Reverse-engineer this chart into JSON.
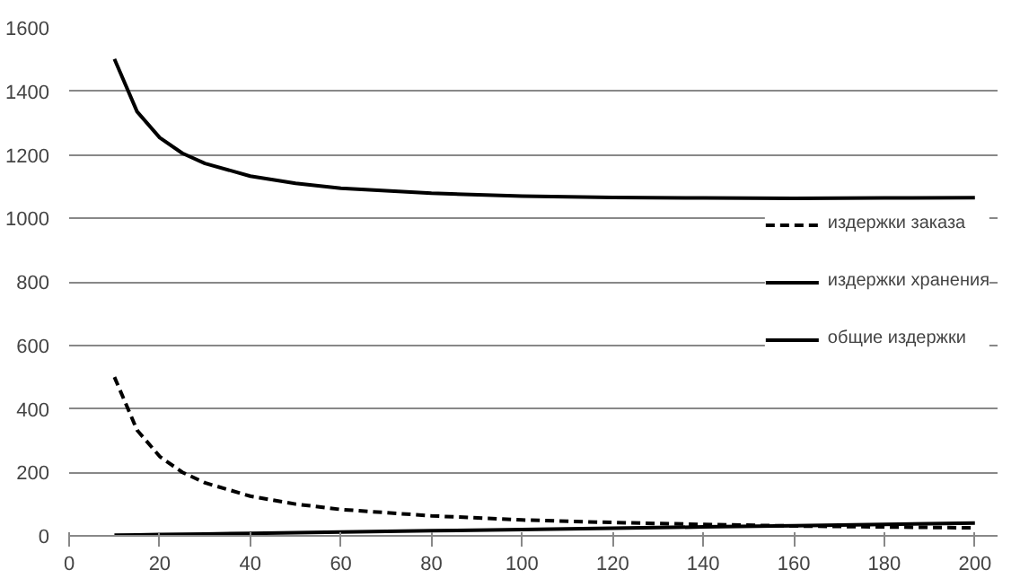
{
  "chart_data": {
    "type": "line",
    "x": [
      10,
      15,
      20,
      25,
      30,
      40,
      50,
      60,
      80,
      100,
      120,
      140,
      160,
      180,
      200
    ],
    "series": [
      {
        "name": "издержки заказа",
        "color": "#000000",
        "line_style": "dashed",
        "values": [
          500,
          333,
          250,
          200,
          167,
          125,
          100,
          83,
          63,
          50,
          42,
          36,
          31,
          28,
          25
        ]
      },
      {
        "name": "издержки хранения",
        "color": "#000000",
        "line_style": "solid",
        "values": [
          2,
          3,
          4,
          5,
          6,
          8,
          10,
          12,
          16,
          20,
          24,
          28,
          32,
          36,
          40
        ]
      },
      {
        "name": "общие издержки",
        "color": "#000000",
        "line_style": "solid",
        "values": [
          1502,
          1336,
          1254,
          1205,
          1173,
          1133,
          1110,
          1095,
          1079,
          1070,
          1066,
          1064,
          1063,
          1064,
          1065
        ]
      }
    ],
    "xlim": [
      0,
      205
    ],
    "xticks": [
      0,
      20,
      40,
      60,
      80,
      100,
      120,
      140,
      160,
      180,
      200
    ],
    "ylim": [
      0,
      1600
    ],
    "yticks": [
      0,
      200,
      400,
      600,
      800,
      1000,
      1200,
      1400,
      1600
    ],
    "grid": "y",
    "legend": "right",
    "marker": "none"
  }
}
